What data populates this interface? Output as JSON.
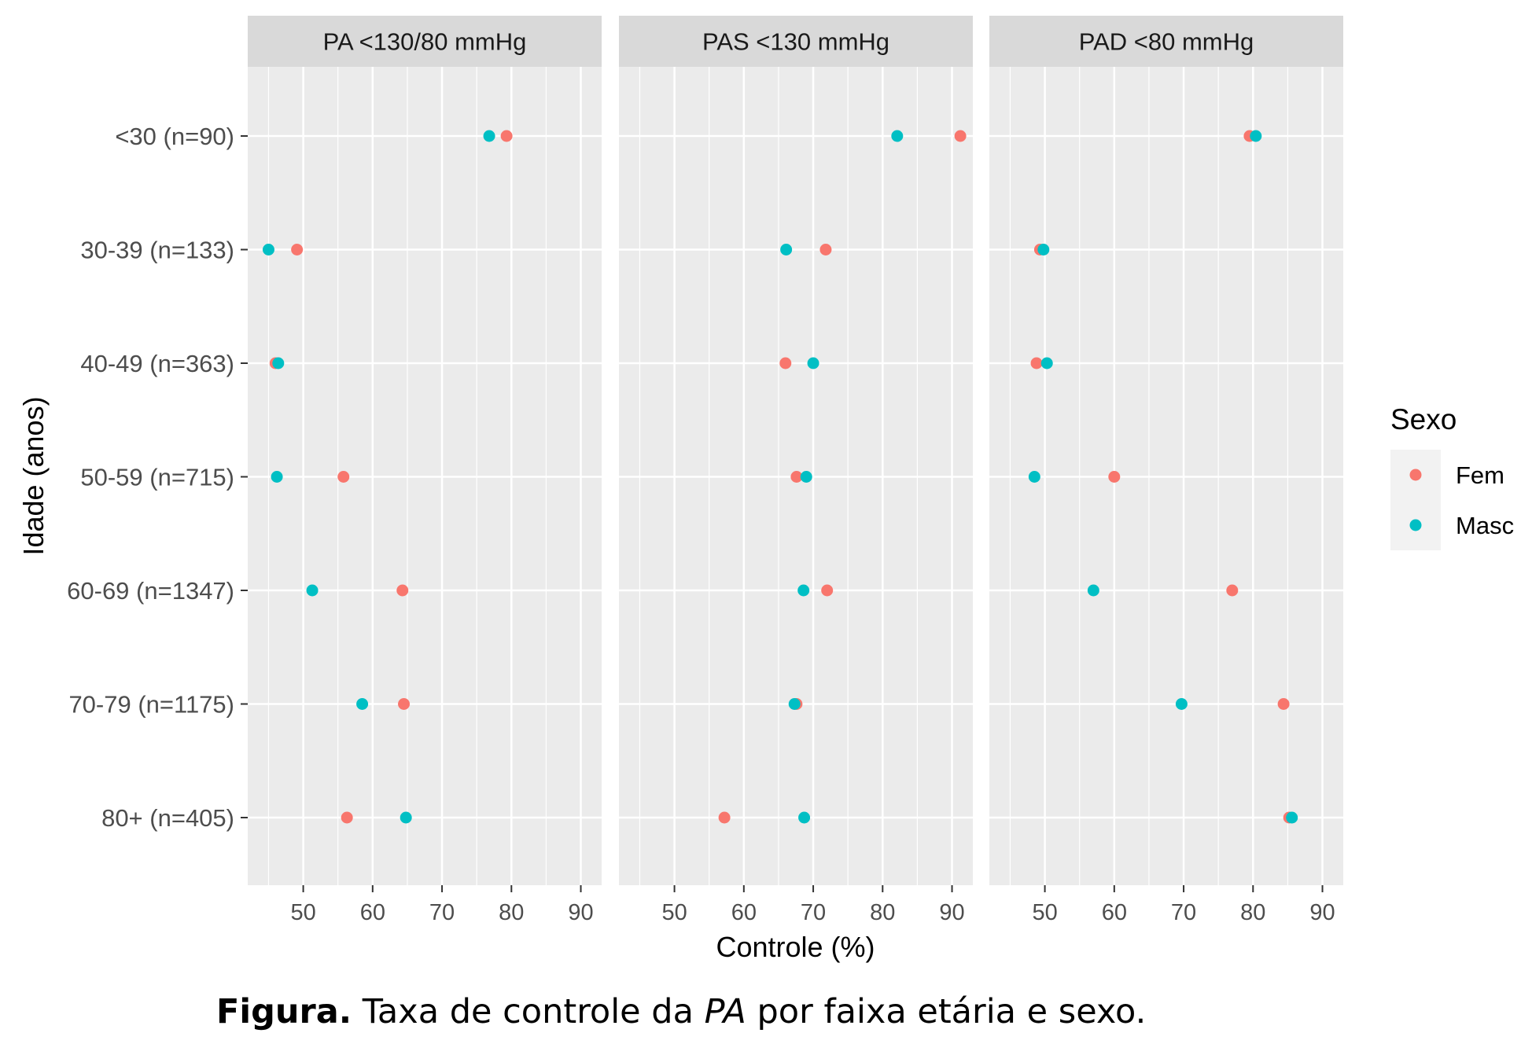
{
  "chart_data": {
    "type": "scatter",
    "xlabel": "Controle (%)",
    "ylabel": "Idade (anos)",
    "xlim": [
      42,
      93
    ],
    "xticks": [
      50,
      60,
      70,
      80,
      90
    ],
    "grid": true,
    "legend": {
      "title": "Sexo",
      "placement": "right",
      "entries": [
        {
          "name": "Fem",
          "color": "#F8766D"
        },
        {
          "name": "Masc",
          "color": "#00BFC4"
        }
      ]
    },
    "categories": [
      "<30 (n=90)",
      "30-39 (n=133)",
      "40-49 (n=363)",
      "50-59 (n=715)",
      "60-69 (n=1347)",
      "70-79 (n=1175)",
      "80+ (n=405)"
    ],
    "panels": [
      {
        "title": "PA <130/80 mmHg",
        "series": [
          {
            "name": "Fem",
            "values": [
              79.3,
              49.1,
              46.0,
              55.8,
              64.3,
              64.5,
              56.3
            ]
          },
          {
            "name": "Masc",
            "values": [
              76.8,
              45.0,
              46.4,
              46.2,
              51.3,
              58.5,
              64.8
            ]
          }
        ]
      },
      {
        "title": "PAS <130 mmHg",
        "series": [
          {
            "name": "Fem",
            "values": [
              91.2,
              71.8,
              66.0,
              67.6,
              72.0,
              67.6,
              57.2
            ]
          },
          {
            "name": "Masc",
            "values": [
              82.1,
              66.1,
              70.0,
              69.0,
              68.6,
              67.3,
              68.7
            ]
          }
        ]
      },
      {
        "title": "PAD <80 mmHg",
        "series": [
          {
            "name": "Fem",
            "values": [
              79.5,
              49.3,
              48.8,
              60.0,
              77.0,
              84.4,
              85.2
            ]
          },
          {
            "name": "Masc",
            "values": [
              80.4,
              49.8,
              50.3,
              48.5,
              57.0,
              69.7,
              85.6
            ]
          }
        ]
      }
    ]
  },
  "caption": {
    "bold": "Figura.",
    "pre": " Taxa de controle da ",
    "italic": "PA",
    "post": " por faixa etária e sexo."
  }
}
